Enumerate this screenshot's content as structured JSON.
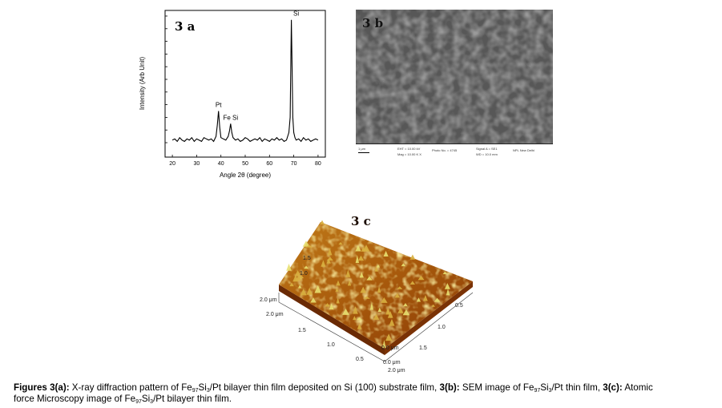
{
  "panels": {
    "a": {
      "label": "3 a",
      "chart_data": {
        "type": "line",
        "title": "",
        "xlabel": "Angle 2θ (degree)",
        "ylabel": "Intensity (Arb Unit)",
        "xlim": [
          17,
          83
        ],
        "xticks": [
          20,
          30,
          40,
          50,
          60,
          70,
          80
        ],
        "ylim": [
          0,
          100
        ],
        "series": [
          {
            "x": [
              20,
              21,
              22,
              23,
              24,
              25,
              26,
              27,
              28,
              29,
              30,
              31,
              32,
              33,
              34,
              35,
              36,
              37,
              38,
              38.5,
              39,
              39.5,
              40,
              41,
              42,
              43,
              43.5,
              44,
              44.5,
              45,
              46,
              47,
              48,
              49,
              50,
              51,
              52,
              53,
              54,
              55,
              56,
              57,
              58,
              59,
              60,
              61,
              62,
              63,
              64,
              65,
              66,
              67,
              68,
              68.5,
              69,
              69.3,
              69.6,
              70,
              70.5,
              71,
              72,
              73,
              74,
              75,
              76,
              77,
              78,
              79,
              80
            ],
            "y": [
              2,
              3,
              1,
              4,
              2,
              1,
              3,
              2,
              4,
              1,
              3,
              2,
              1,
              4,
              3,
              2,
              3,
              1,
              5,
              14,
              25,
              12,
              4,
              3,
              2,
              5,
              9,
              15,
              8,
              4,
              2,
              3,
              1,
              2,
              4,
              3,
              1,
              2,
              3,
              2,
              4,
              1,
              3,
              2,
              1,
              3,
              2,
              4,
              2,
              3,
              1,
              2,
              8,
              20,
              97,
              60,
              20,
              8,
              4,
              2,
              3,
              1,
              4,
              2,
              3,
              1,
              2,
              3,
              2
            ]
          }
        ],
        "annotations": [
          {
            "text": "Pt",
            "x": 39,
            "y": 25
          },
          {
            "text": "Fe Si",
            "x": 44,
            "y": 15
          },
          {
            "text": "Si",
            "x": 69,
            "y": 97
          }
        ]
      }
    },
    "b": {
      "label": "3 b",
      "scale_text": "1 μm",
      "info": [
        "EHT = 10.00 kV",
        "Mag = 10.00 K X",
        "Photo No. = 4745",
        "Signal A = SE1",
        "WD = 10.0 mm",
        "NPL New Delhi"
      ]
    },
    "c": {
      "label": "3 c",
      "axis_labels": [
        "2.0 μm",
        "2.0 μm",
        "1.5",
        "1.0",
        "0.5",
        "0.0 μm",
        "0.0 μm",
        "2.0 μm",
        "1.5",
        "1.0",
        "0.5",
        "1.5",
        "1.0"
      ]
    }
  },
  "caption": {
    "l1_a": "Figures 3(a):",
    "l1_b": " X-ray diffraction pattern of  Fe",
    "sub_97a": "97",
    "l1_c": "Si",
    "sub_3a": "3",
    "l1_d": "/Pt bilayer thin film deposited on Si (100) substrate film, ",
    "l1_e": "3(b):",
    "l1_f": " SEM image of  Fe",
    "sub_97b": "97",
    "l1_g": "Si",
    "sub_3b": "3",
    "l1_h": "/Pt thin film, ",
    "l1_i": "3(c):",
    "l1_j": " Atomic",
    "l2_a": "force Microscopy image of  Fe",
    "sub_97c": "97",
    "l2_b": "Si",
    "sub_3c": "3",
    "l2_c": "/Pt bilayer thin film."
  },
  "colors": {
    "sem_bg": "#5a5a5a",
    "afm_high": "#e8e070",
    "afm_low": "#8a3a05"
  }
}
